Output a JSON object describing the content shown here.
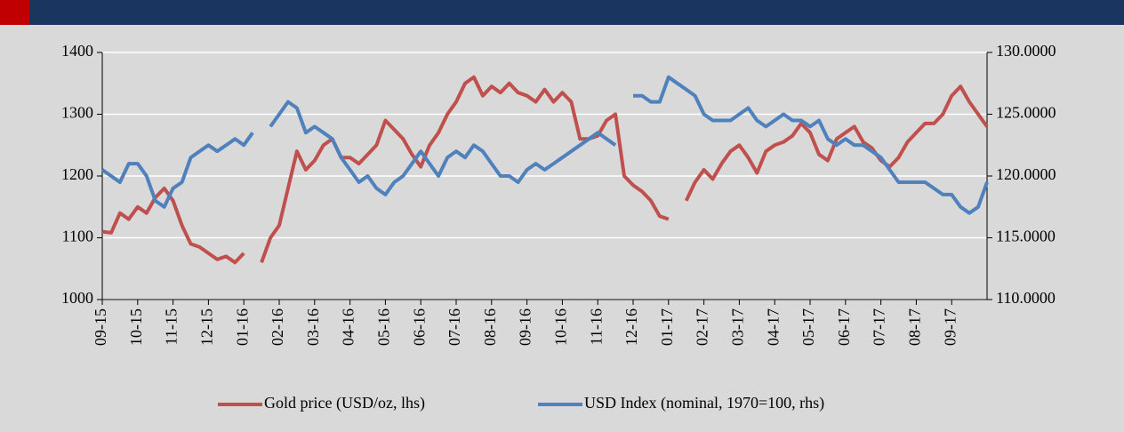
{
  "chart_data": {
    "type": "line",
    "categories": [
      "09-15",
      null,
      null,
      null,
      "10-15",
      null,
      null,
      null,
      "11-15",
      null,
      null,
      null,
      "12-15",
      null,
      null,
      null,
      "01-16",
      null,
      null,
      null,
      "02-16",
      null,
      null,
      null,
      "03-16",
      null,
      null,
      null,
      "04-16",
      null,
      null,
      null,
      "05-16",
      null,
      null,
      null,
      "06-16",
      null,
      null,
      null,
      "07-16",
      null,
      null,
      null,
      "08-16",
      null,
      null,
      null,
      "09-16",
      null,
      null,
      null,
      "10-16",
      null,
      null,
      null,
      "11-16",
      null,
      null,
      null,
      "12-16",
      null,
      null,
      null,
      "01-17",
      null,
      null,
      null,
      "02-17",
      null,
      null,
      null,
      "03-17",
      null,
      null,
      null,
      "04-17",
      null,
      null,
      null,
      "05-17",
      null,
      null,
      null,
      "06-17",
      null,
      null,
      null,
      "07-17",
      null,
      null,
      null,
      "08-17",
      null,
      null,
      null,
      "09-17",
      null,
      null,
      null,
      null
    ],
    "series": [
      {
        "name": "Gold price (USD/oz, lhs)",
        "color": "#c0504d",
        "axis": "y",
        "values": [
          1110,
          1108,
          1140,
          1130,
          1150,
          1140,
          1165,
          1180,
          1160,
          1120,
          1090,
          1085,
          1075,
          1065,
          1070,
          1060,
          1075,
          null,
          1060,
          1100,
          1120,
          1180,
          1240,
          1210,
          1225,
          1250,
          1260,
          1230,
          1230,
          1220,
          1235,
          1250,
          1290,
          1275,
          1260,
          1235,
          1215,
          1250,
          1270,
          1300,
          1320,
          1350,
          1360,
          1330,
          1345,
          1335,
          1350,
          1335,
          1330,
          1320,
          1340,
          1320,
          1335,
          1320,
          1260,
          1260,
          1265,
          1290,
          1300,
          1200,
          1185,
          1175,
          1160,
          1135,
          1130,
          null,
          1160,
          1190,
          1210,
          1195,
          1220,
          1240,
          1250,
          1230,
          1205,
          1240,
          1250,
          1255,
          1265,
          1285,
          1270,
          1235,
          1225,
          1260,
          1270,
          1280,
          1255,
          1245,
          1225,
          1215,
          1230,
          1255,
          1270,
          1285,
          1285,
          1300,
          1330,
          1345,
          1320,
          1300,
          1280
        ]
      },
      {
        "name": "USD Index (nominal, 1970=100, rhs)",
        "color": "#4f81bd",
        "axis": "y2",
        "values": [
          120.5,
          120,
          119.5,
          121,
          121,
          120,
          118,
          117.5,
          119,
          119.5,
          121.5,
          122,
          122.5,
          122,
          122.5,
          123,
          122.5,
          123.5,
          null,
          124,
          125,
          126,
          125.5,
          123.5,
          124,
          123.5,
          123,
          121.5,
          120.5,
          119.5,
          120,
          119,
          118.5,
          119.5,
          120,
          121,
          122,
          121,
          120,
          121.5,
          122,
          121.5,
          122.5,
          122,
          121,
          120,
          120,
          119.5,
          120.5,
          121,
          120.5,
          121,
          121.5,
          122,
          122.5,
          123,
          123.5,
          123,
          122.5,
          null,
          126.5,
          126.5,
          126,
          126,
          128,
          127.5,
          127,
          126.5,
          125,
          124.5,
          124.5,
          124.5,
          125,
          125.5,
          124.5,
          124,
          124.5,
          125,
          124.5,
          124.5,
          124,
          124.5,
          123,
          122.5,
          123,
          122.5,
          122.5,
          122,
          121.5,
          120.5,
          119.5,
          119.5,
          119.5,
          119.5,
          119,
          118.5,
          118.5,
          117.5,
          117,
          117.5,
          119.5
        ]
      }
    ],
    "ylim": [
      1000,
      1400
    ],
    "yticks": [
      1000,
      1100,
      1200,
      1300,
      1400
    ],
    "y2lim": [
      110,
      130
    ],
    "y2ticks": [
      {
        "value": 110,
        "label": "110.0000"
      },
      {
        "value": 115,
        "label": "115.0000"
      },
      {
        "value": 120,
        "label": "120.0000"
      },
      {
        "value": 125,
        "label": "125.0000"
      },
      {
        "value": 130,
        "label": "130.0000"
      }
    ],
    "grid": true,
    "legend": "bottom"
  }
}
